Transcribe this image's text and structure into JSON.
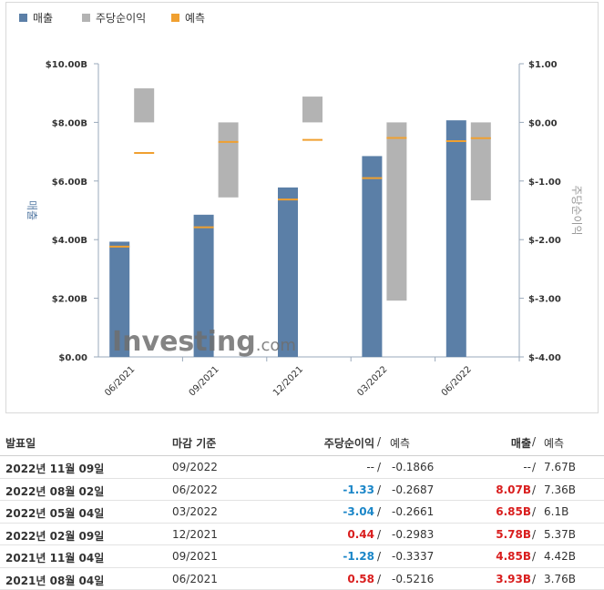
{
  "legend": [
    {
      "label": "매출",
      "color": "#5b7fa7"
    },
    {
      "label": "주당순이익",
      "color": "#b3b3b3"
    },
    {
      "label": "예측",
      "color": "#f0a030"
    }
  ],
  "watermark": {
    "brand": "Investing",
    "suffix": ".com"
  },
  "chart_data": {
    "type": "bar",
    "categories": [
      "06/2021",
      "09/2021",
      "12/2021",
      "03/2022",
      "06/2022"
    ],
    "left_axis": {
      "label": "매출",
      "ticks": [
        "$0.00",
        "$2.00B",
        "$4.00B",
        "$6.00B",
        "$8.00B",
        "$10.00B"
      ],
      "range": [
        0,
        10
      ]
    },
    "right_axis": {
      "label": "주당순이익",
      "ticks": [
        "$-4.00",
        "$-3.00",
        "$-2.00",
        "$-1.00",
        "$0.00",
        "$1.00"
      ],
      "range": [
        -4,
        1
      ]
    },
    "series": [
      {
        "name": "매출",
        "values": [
          3.93,
          4.85,
          5.78,
          6.85,
          8.07
        ]
      },
      {
        "name": "주당순이익",
        "values": [
          0.58,
          -1.28,
          0.44,
          -3.04,
          -1.33
        ]
      },
      {
        "name": "예측",
        "revenue_forecast": [
          3.76,
          4.42,
          5.37,
          6.1,
          7.36
        ],
        "eps_forecast": [
          -0.5216,
          -0.3337,
          -0.2983,
          -0.2661,
          -0.2687
        ]
      }
    ],
    "grid": false
  },
  "table": {
    "headers": {
      "date": "발표일",
      "period": "마감 기준",
      "eps": "주당순이익",
      "sep": "/",
      "eps_forecast": "예측",
      "revenue": "매출",
      "revenue_forecast": "예측"
    },
    "rows": [
      {
        "date": "2022년 11월 09일",
        "period": "09/2022",
        "eps": "--",
        "eps_sign": "neu",
        "eps_forecast": "-0.1866",
        "revenue": "--",
        "rev_sign": "neu",
        "revenue_forecast": "7.67B"
      },
      {
        "date": "2022년 08월 02일",
        "period": "06/2022",
        "eps": "-1.33",
        "eps_sign": "neg",
        "eps_forecast": "-0.2687",
        "revenue": "8.07B",
        "rev_sign": "pos",
        "revenue_forecast": "7.36B"
      },
      {
        "date": "2022년 05월 04일",
        "period": "03/2022",
        "eps": "-3.04",
        "eps_sign": "neg",
        "eps_forecast": "-0.2661",
        "revenue": "6.85B",
        "rev_sign": "pos",
        "revenue_forecast": "6.1B"
      },
      {
        "date": "2022년 02월 09일",
        "period": "12/2021",
        "eps": "0.44",
        "eps_sign": "pos",
        "eps_forecast": "-0.2983",
        "revenue": "5.78B",
        "rev_sign": "pos",
        "revenue_forecast": "5.37B"
      },
      {
        "date": "2021년 11월 04일",
        "period": "09/2021",
        "eps": "-1.28",
        "eps_sign": "neg",
        "eps_forecast": "-0.3337",
        "revenue": "4.85B",
        "rev_sign": "pos",
        "revenue_forecast": "4.42B"
      },
      {
        "date": "2021년 08월 04일",
        "period": "06/2021",
        "eps": "0.58",
        "eps_sign": "pos",
        "eps_forecast": "-0.5216",
        "revenue": "3.93B",
        "rev_sign": "pos",
        "revenue_forecast": "3.76B"
      }
    ]
  }
}
